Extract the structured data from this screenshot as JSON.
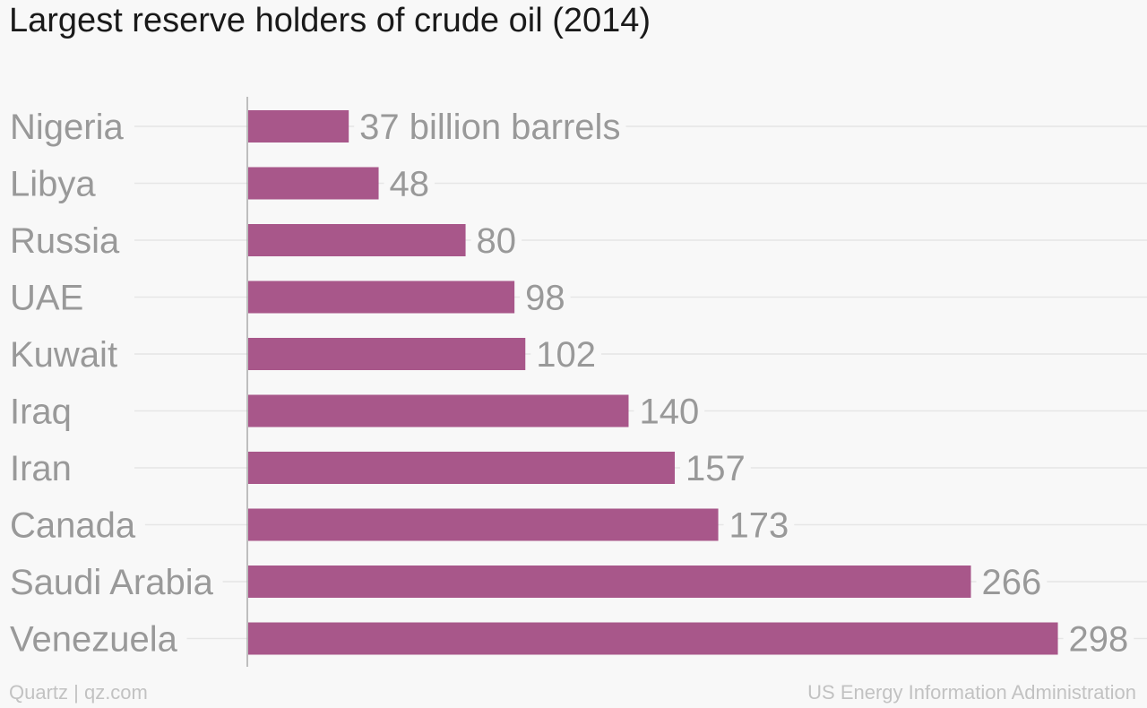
{
  "chart_data": {
    "type": "bar",
    "orientation": "horizontal",
    "title": "Largest reserve holders of crude oil (2014)",
    "categories": [
      "Nigeria",
      "Libya",
      "Russia",
      "UAE",
      "Kuwait",
      "Iraq",
      "Iran",
      "Canada",
      "Saudi Arabia",
      "Venezuela"
    ],
    "values": [
      37,
      48,
      80,
      98,
      102,
      140,
      157,
      173,
      266,
      298
    ],
    "value_labels": [
      "37 billion barrels",
      "48",
      "80",
      "98",
      "102",
      "140",
      "157",
      "173",
      "266",
      "298"
    ],
    "xlim": [
      0,
      300
    ],
    "grid": true,
    "legend": "none",
    "bar_color": "#a8578a"
  },
  "footer": {
    "source_left": "Quartz | qz.com",
    "source_right": "US Energy Information Administration"
  },
  "colors": {
    "bar": "#a8578a",
    "category_label": "#999999",
    "value_label": "#999999",
    "gridline": "#e6e6e6",
    "axis": "#aaaaaa",
    "background": "#f8f8f8"
  }
}
